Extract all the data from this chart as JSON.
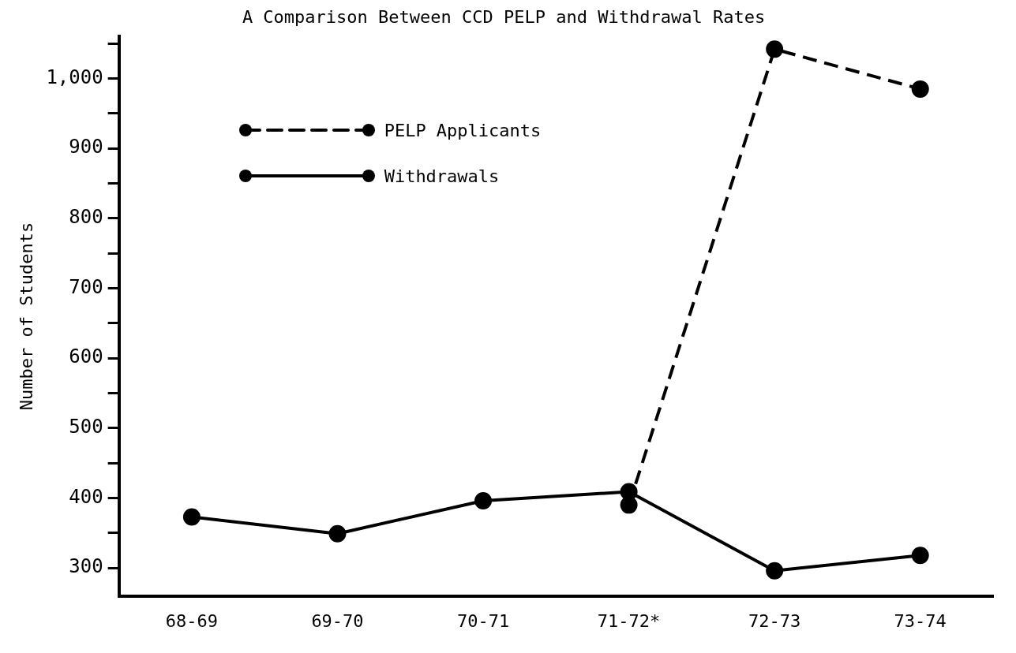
{
  "chart_data": {
    "type": "line",
    "title": "A Comparison Between CCD PELP and Withdrawal Rates",
    "ylabel": "Number of Students",
    "categories": [
      "68-69",
      "69-70",
      "70-71",
      "71-72*",
      "72-73",
      "73-74"
    ],
    "series": [
      {
        "name": "PELP Applicants",
        "color": "#000000",
        "line_style": "dashed",
        "values": [
          null,
          null,
          null,
          390,
          1042,
          985
        ]
      },
      {
        "name": "Withdrawals",
        "color": "#000000",
        "line_style": "solid",
        "values": [
          373,
          349,
          396,
          409,
          296,
          318
        ]
      }
    ],
    "ylim": [
      260,
      1060
    ],
    "yticks": [
      {
        "value": 300,
        "label": "300"
      },
      {
        "value": 350,
        "label": null
      },
      {
        "value": 400,
        "label": "400"
      },
      {
        "value": 450,
        "label": null
      },
      {
        "value": 500,
        "label": "500"
      },
      {
        "value": 550,
        "label": null
      },
      {
        "value": 600,
        "label": "600"
      },
      {
        "value": 650,
        "label": null
      },
      {
        "value": 700,
        "label": "700"
      },
      {
        "value": 750,
        "label": null
      },
      {
        "value": 800,
        "label": "800"
      },
      {
        "value": 850,
        "label": null
      },
      {
        "value": 900,
        "label": "900"
      },
      {
        "value": 950,
        "label": null
      },
      {
        "value": 1000,
        "label": "1,000"
      },
      {
        "value": 1050,
        "label": null
      }
    ],
    "grid": false,
    "legend": "top left",
    "marker": "circle"
  }
}
